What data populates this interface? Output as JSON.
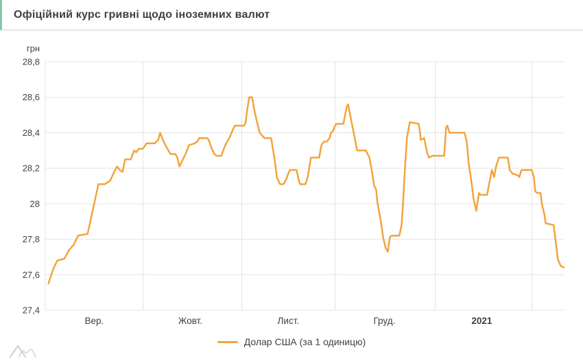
{
  "header": {
    "title": "Офіційний курс гривні щодо іноземних валют",
    "accent_color": "#85C8A6"
  },
  "legend": {
    "label": "Долар США (за 1 одиницю)"
  },
  "chart_data": {
    "type": "line",
    "title": "Офіційний курс гривні щодо іноземних валют",
    "series_name": "Долар США (за 1 одиницю)",
    "unit_label": "грн",
    "line_color": "#F2A43C",
    "grid_color": "#E3E3E3",
    "label_color": "#424242",
    "legend_position": "bottom",
    "grid": true,
    "y_domain": [
      27.4,
      28.8
    ],
    "y_ticks": [
      {
        "v": 28.8,
        "label": "28,8"
      },
      {
        "v": 28.6,
        "label": "28,6"
      },
      {
        "v": 28.4,
        "label": "28,4"
      },
      {
        "v": 28.2,
        "label": "28,2"
      },
      {
        "v": 28.0,
        "label": "28"
      },
      {
        "v": 27.8,
        "label": "27,8"
      },
      {
        "v": 27.6,
        "label": "27,6"
      },
      {
        "v": 27.4,
        "label": "27,4"
      }
    ],
    "x_unit": "day index (0 = початок періоду, Вер. 2020)",
    "x_domain": [
      -1,
      162
    ],
    "x_ticks": [
      {
        "label": "Вер.",
        "d": 14.4,
        "bold": false
      },
      {
        "label": "Жовт.",
        "d": 44.6,
        "bold": false
      },
      {
        "label": "Лист.",
        "d": 75.4,
        "bold": false
      },
      {
        "label": "Груд.",
        "d": 105.6,
        "bold": false
      },
      {
        "label": "2021",
        "d": 136.2,
        "bold": true
      }
    ],
    "x_gridlines_d": [
      29.7,
      60.8,
      90.1,
      121.6,
      152
    ],
    "points": [
      [
        0,
        27.55
      ],
      [
        0.9,
        27.6
      ],
      [
        1.7,
        27.64
      ],
      [
        2.8,
        27.68
      ],
      [
        5,
        27.69
      ],
      [
        6.5,
        27.74
      ],
      [
        8,
        27.77
      ],
      [
        9.3,
        27.82
      ],
      [
        12.3,
        27.83
      ],
      [
        14,
        27.97
      ],
      [
        15.7,
        28.11
      ],
      [
        17.7,
        28.11
      ],
      [
        19.4,
        28.13
      ],
      [
        20.7,
        28.18
      ],
      [
        21.6,
        28.21
      ],
      [
        22.4,
        28.19
      ],
      [
        23.3,
        28.18
      ],
      [
        24.1,
        28.25
      ],
      [
        25.9,
        28.25
      ],
      [
        26.9,
        28.3
      ],
      [
        27.6,
        28.29
      ],
      [
        28.4,
        28.31
      ],
      [
        29.7,
        28.31
      ],
      [
        30.8,
        28.34
      ],
      [
        33.4,
        28.34
      ],
      [
        34.5,
        28.36
      ],
      [
        35.1,
        28.4
      ],
      [
        36.2,
        28.35
      ],
      [
        37.7,
        28.3
      ],
      [
        38.4,
        28.28
      ],
      [
        39.9,
        28.28
      ],
      [
        40.5,
        28.26
      ],
      [
        41.2,
        28.21
      ],
      [
        42,
        28.24
      ],
      [
        43.1,
        28.28
      ],
      [
        44.2,
        28.33
      ],
      [
        45.9,
        28.34
      ],
      [
        46.8,
        28.35
      ],
      [
        47.4,
        28.37
      ],
      [
        50,
        28.37
      ],
      [
        50.6,
        28.35
      ],
      [
        51.3,
        28.31
      ],
      [
        52.2,
        28.28
      ],
      [
        52.8,
        28.27
      ],
      [
        54.3,
        28.27
      ],
      [
        55.6,
        28.33
      ],
      [
        57.1,
        28.38
      ],
      [
        57.8,
        28.41
      ],
      [
        58.6,
        28.44
      ],
      [
        61.4,
        28.44
      ],
      [
        61.9,
        28.45
      ],
      [
        62.5,
        28.53
      ],
      [
        63.1,
        28.6
      ],
      [
        64,
        28.6
      ],
      [
        64.7,
        28.53
      ],
      [
        65.3,
        28.48
      ],
      [
        66.4,
        28.4
      ],
      [
        67.9,
        28.37
      ],
      [
        70,
        28.37
      ],
      [
        71.1,
        28.25
      ],
      [
        71.8,
        28.15
      ],
      [
        72.8,
        28.11
      ],
      [
        73.9,
        28.11
      ],
      [
        74.8,
        28.14
      ],
      [
        75.4,
        28.17
      ],
      [
        75.9,
        28.19
      ],
      [
        78,
        28.19
      ],
      [
        78.7,
        28.13
      ],
      [
        79.1,
        28.11
      ],
      [
        80.8,
        28.11
      ],
      [
        81.5,
        28.15
      ],
      [
        82.5,
        28.26
      ],
      [
        85.1,
        28.26
      ],
      [
        85.8,
        28.33
      ],
      [
        86.6,
        28.35
      ],
      [
        87.5,
        28.35
      ],
      [
        88.4,
        28.37
      ],
      [
        88.8,
        28.4
      ],
      [
        89.4,
        28.41
      ],
      [
        90.1,
        28.44
      ],
      [
        90.5,
        28.45
      ],
      [
        92.7,
        28.45
      ],
      [
        93.8,
        28.55
      ],
      [
        94.2,
        28.56
      ],
      [
        95.5,
        28.44
      ],
      [
        96.3,
        28.37
      ],
      [
        97,
        28.3
      ],
      [
        99.8,
        28.3
      ],
      [
        100.9,
        28.26
      ],
      [
        101.7,
        28.18
      ],
      [
        102.4,
        28.1
      ],
      [
        103,
        28.08
      ],
      [
        103.4,
        28.01
      ],
      [
        104.5,
        27.9
      ],
      [
        105.2,
        27.81
      ],
      [
        106,
        27.75
      ],
      [
        106.7,
        27.73
      ],
      [
        107.3,
        27.81
      ],
      [
        107.8,
        27.82
      ],
      [
        110.3,
        27.82
      ],
      [
        111,
        27.88
      ],
      [
        111.4,
        27.98
      ],
      [
        112.1,
        28.21
      ],
      [
        112.7,
        28.37
      ],
      [
        113.6,
        28.46
      ],
      [
        116.4,
        28.45
      ],
      [
        116.8,
        28.4
      ],
      [
        117,
        28.36
      ],
      [
        118.1,
        28.37
      ],
      [
        119,
        28.29
      ],
      [
        119.6,
        28.26
      ],
      [
        120.7,
        28.27
      ],
      [
        124.4,
        28.27
      ],
      [
        125,
        28.43
      ],
      [
        125.4,
        28.44
      ],
      [
        126.1,
        28.4
      ],
      [
        130.8,
        28.4
      ],
      [
        131.5,
        28.35
      ],
      [
        132.1,
        28.23
      ],
      [
        133,
        28.12
      ],
      [
        133.6,
        28.03
      ],
      [
        134.5,
        27.96
      ],
      [
        135.3,
        28.06
      ],
      [
        135.8,
        28.05
      ],
      [
        137.9,
        28.05
      ],
      [
        138.6,
        28.12
      ],
      [
        139.4,
        28.19
      ],
      [
        140.1,
        28.15
      ],
      [
        140.7,
        28.21
      ],
      [
        141.6,
        28.26
      ],
      [
        144.4,
        28.26
      ],
      [
        145,
        28.19
      ],
      [
        145.9,
        28.17
      ],
      [
        147.6,
        28.16
      ],
      [
        148,
        28.15
      ],
      [
        148.7,
        28.19
      ],
      [
        151.9,
        28.19
      ],
      [
        152.6,
        28.15
      ],
      [
        153,
        28.07
      ],
      [
        153.7,
        28.06
      ],
      [
        154.7,
        28.06
      ],
      [
        155.2,
        27.99
      ],
      [
        155.8,
        27.95
      ],
      [
        156.3,
        27.89
      ],
      [
        158.8,
        27.88
      ],
      [
        159.5,
        27.78
      ],
      [
        160.1,
        27.69
      ],
      [
        161,
        27.65
      ],
      [
        162,
        27.64
      ]
    ]
  }
}
